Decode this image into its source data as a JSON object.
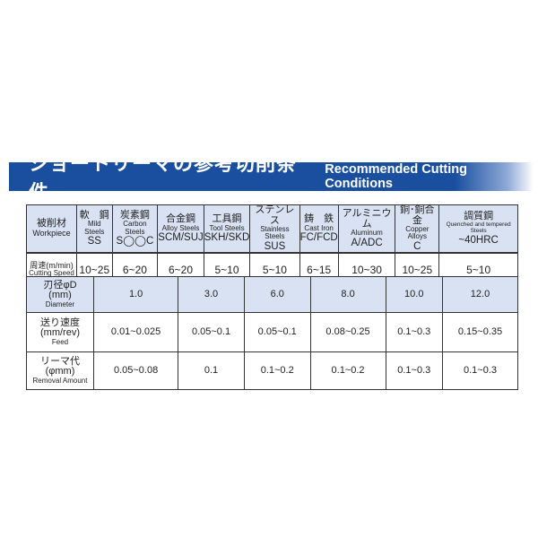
{
  "banner": {
    "title_jp": "ショートリーマの参考切削条件",
    "title_en": "Recommended Cutting Conditions",
    "color": "#1a4fa0"
  },
  "workpiece_table": {
    "label_jp": "被削材",
    "label_en": "Workpiece",
    "speed_label_jp": "周速(m/min)",
    "speed_label_en": "Cutting Speed",
    "materials": [
      {
        "jp": "軟　鋼",
        "en": "Mild Steels",
        "code": "SS",
        "speed": "10~25"
      },
      {
        "jp": "炭素鋼",
        "en": "Carbon Steels",
        "code": "S◯◯C",
        "speed": "6~20"
      },
      {
        "jp": "合金鋼",
        "en": "Alloy Steels",
        "code": "SCM/SUJ",
        "speed": "6~20"
      },
      {
        "jp": "工具鋼",
        "en": "Tool Steels",
        "code": "SKH/SKD",
        "speed": "5~10"
      },
      {
        "jp": "ステンレス",
        "en": "Stainless Steels",
        "code": "SUS",
        "speed": "5~10"
      },
      {
        "jp": "鋳　鉄",
        "en": "Cast Iron",
        "code": "FC/FCD",
        "speed": "6~15"
      },
      {
        "jp": "アルミニウム",
        "en": "Aluminum",
        "code": "A/ADC",
        "speed": "10~30"
      },
      {
        "jp": "銅･銅合金",
        "en": "Copper Alloys",
        "code": "C",
        "speed": "10~25"
      },
      {
        "jp": "調質鋼",
        "en": "Quenched and tempered Steels",
        "code": "~40HRC",
        "speed": "5~10"
      }
    ]
  },
  "diameter_table": {
    "diameter_label": {
      "jp": "刃径φD",
      "unit": "(mm)",
      "en": "Diameter"
    },
    "feed_label": {
      "jp": "送り速度",
      "unit": "(mm/rev)",
      "en": "Feed"
    },
    "removal_label": {
      "jp": "リーマ代",
      "unit": "(φmm)",
      "en": "Removal Amount"
    },
    "diameters": [
      "1.0",
      "3.0",
      "6.0",
      "8.0",
      "10.0",
      "12.0"
    ],
    "feed": [
      "0.01~0.025",
      "0.05~0.1",
      "0.05~0.1",
      "0.08~0.25",
      "0.1~0.3",
      "0.15~0.35"
    ],
    "removal": [
      "0.05~0.08",
      "0.1",
      "0.1~0.2",
      "0.1~0.2",
      "0.1~0.3",
      "0.1~0.3"
    ]
  }
}
